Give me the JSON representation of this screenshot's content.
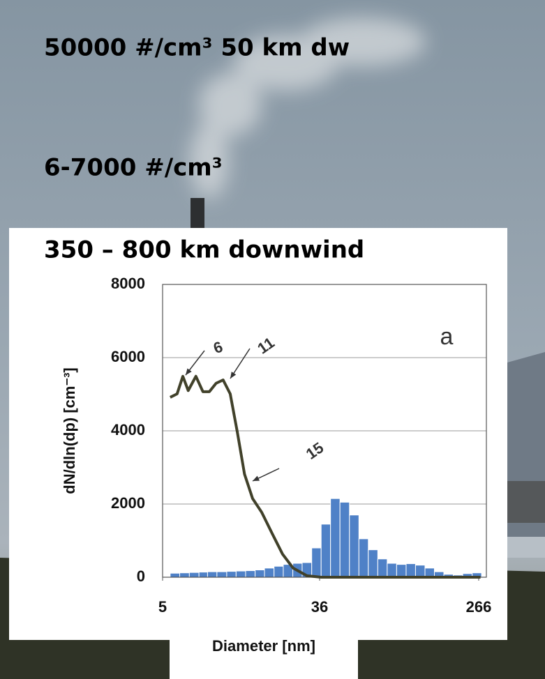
{
  "slide_text": [
    "50000 #/cm³ 50 km dw",
    "6-7000 #/cm³"
  ],
  "chart_data": {
    "type": "histogram",
    "title": "350 – 800 km downwind",
    "xlabel": "Diameter [nm]",
    "ylabel": "dN/dln(dp) [cm⁻³]",
    "xscale": "log",
    "xlim": [
      5,
      293
    ],
    "xticks": [
      5,
      36,
      266
    ],
    "ylim": [
      0,
      8000
    ],
    "yticks": [
      0,
      2000,
      4000,
      6000,
      8000
    ],
    "grid": true,
    "color": "#4f81c7",
    "bins": [
      5.5,
      6.2,
      7.0,
      7.9,
      8.8,
      9.9,
      11.2,
      12.6,
      14.2,
      16.0,
      18.0,
      20.3,
      22.8,
      25.7,
      28.9,
      32.6,
      36.7,
      41.3,
      46.5,
      52.4,
      59.0,
      66.4,
      74.8,
      84.2,
      94.8,
      106.8,
      120.2,
      135.4,
      152.4,
      171.6,
      193.3,
      217.6,
      245.1,
      275.9
    ],
    "counts": [
      110,
      120,
      130,
      140,
      150,
      150,
      160,
      170,
      180,
      200,
      250,
      300,
      350,
      380,
      400,
      800,
      1450,
      2150,
      2050,
      1700,
      1050,
      750,
      500,
      380,
      350,
      370,
      330,
      250,
      150,
      80,
      60,
      100,
      120
    ],
    "curve": {
      "color": "#41412a",
      "x": [
        5.5,
        6.0,
        6.45,
        6.9,
        7.6,
        8.3,
        9.0,
        9.8,
        10.7,
        11.7,
        12.8,
        14.0,
        15.5,
        17.4,
        19.8,
        22.6,
        25.8,
        30.7,
        36.7,
        272
      ],
      "values": [
        4915,
        5010,
        5490,
        5100,
        5490,
        5070,
        5070,
        5300,
        5390,
        5010,
        3960,
        2820,
        2150,
        1770,
        1200,
        630,
        250,
        40,
        0,
        0
      ]
    },
    "annotations": [
      "6",
      "11",
      "15",
      "a"
    ]
  }
}
